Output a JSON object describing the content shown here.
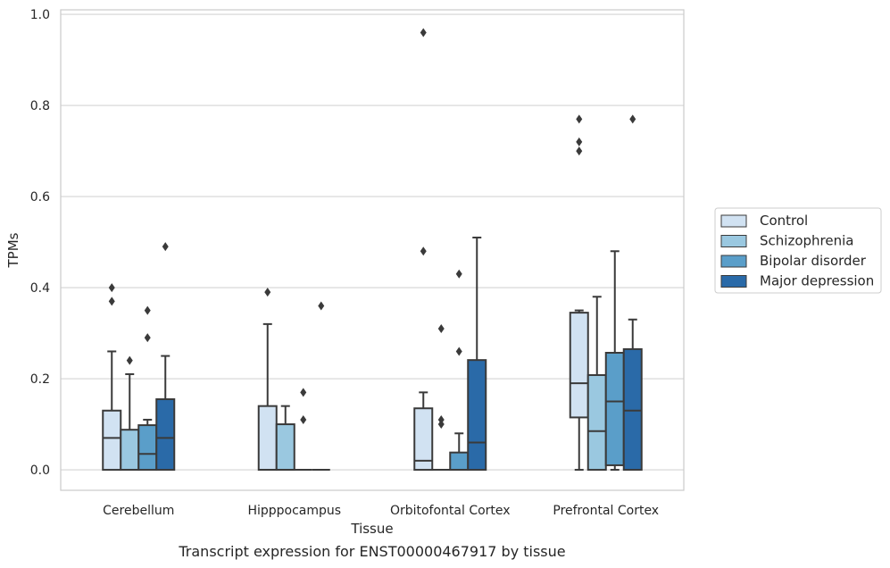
{
  "chart_data": {
    "type": "box",
    "caption": "Transcript expression for ENST00000467917 by tissue",
    "xlabel": "Tissue",
    "ylabel": "TPMs",
    "ylim": [
      -0.045,
      1.01
    ],
    "yticks": [
      "0.0",
      "0.2",
      "0.4",
      "0.6",
      "0.8",
      "1.0"
    ],
    "grid": "horizontal",
    "legend_position": "right",
    "categories": [
      "Cerebellum",
      "Hipppocampus",
      "Orbitofontal Cortex",
      "Prefrontal Cortex"
    ],
    "series": [
      {
        "name": "Control",
        "color": "#d1e2f2",
        "boxes": [
          {
            "q1": 0.0,
            "median": 0.07,
            "q3": 0.13,
            "whisker_low": 0.0,
            "whisker_high": 0.26,
            "outliers": [
              0.37,
              0.4
            ]
          },
          {
            "q1": 0.0,
            "median": 0.0,
            "q3": 0.14,
            "whisker_low": 0.0,
            "whisker_high": 0.32,
            "outliers": [
              0.39
            ]
          },
          {
            "q1": 0.0,
            "median": 0.02,
            "q3": 0.135,
            "whisker_low": 0.0,
            "whisker_high": 0.17,
            "outliers": [
              0.48,
              0.96
            ]
          },
          {
            "q1": 0.115,
            "median": 0.19,
            "q3": 0.345,
            "whisker_low": 0.0,
            "whisker_high": 0.35,
            "outliers": [
              0.7,
              0.72,
              0.77
            ]
          }
        ]
      },
      {
        "name": "Schizophrenia",
        "color": "#9ac8e0",
        "boxes": [
          {
            "q1": 0.0,
            "median": 0.0,
            "q3": 0.088,
            "whisker_low": 0.0,
            "whisker_high": 0.21,
            "outliers": [
              0.24
            ]
          },
          {
            "q1": 0.0,
            "median": 0.0,
            "q3": 0.1,
            "whisker_low": 0.0,
            "whisker_high": 0.14,
            "outliers": []
          },
          {
            "q1": 0.0,
            "median": 0.0,
            "q3": 0.0,
            "whisker_low": 0.0,
            "whisker_high": 0.0,
            "outliers": [
              0.1,
              0.11,
              0.31
            ]
          },
          {
            "q1": 0.0,
            "median": 0.085,
            "q3": 0.208,
            "whisker_low": 0.0,
            "whisker_high": 0.38,
            "outliers": []
          }
        ]
      },
      {
        "name": "Bipolar disorder",
        "color": "#5a9ec9",
        "boxes": [
          {
            "q1": 0.0,
            "median": 0.035,
            "q3": 0.098,
            "whisker_low": 0.0,
            "whisker_high": 0.11,
            "outliers": [
              0.29,
              0.35
            ]
          },
          {
            "q1": 0.0,
            "median": 0.0,
            "q3": 0.0,
            "whisker_low": 0.0,
            "whisker_high": 0.0,
            "outliers": [
              0.11,
              0.17
            ]
          },
          {
            "q1": 0.0,
            "median": 0.0,
            "q3": 0.038,
            "whisker_low": 0.0,
            "whisker_high": 0.08,
            "outliers": [
              0.26,
              0.43
            ]
          },
          {
            "q1": 0.01,
            "median": 0.15,
            "q3": 0.257,
            "whisker_low": 0.0,
            "whisker_high": 0.48,
            "outliers": []
          }
        ]
      },
      {
        "name": "Major depression",
        "color": "#2a6aa8",
        "boxes": [
          {
            "q1": 0.0,
            "median": 0.07,
            "q3": 0.155,
            "whisker_low": 0.0,
            "whisker_high": 0.25,
            "outliers": [
              0.49
            ]
          },
          {
            "q1": 0.0,
            "median": 0.0,
            "q3": 0.0,
            "whisker_low": 0.0,
            "whisker_high": 0.0,
            "outliers": [
              0.36
            ]
          },
          {
            "q1": 0.0,
            "median": 0.06,
            "q3": 0.241,
            "whisker_low": 0.0,
            "whisker_high": 0.51,
            "outliers": []
          },
          {
            "q1": 0.0,
            "median": 0.13,
            "q3": 0.265,
            "whisker_low": 0.0,
            "whisker_high": 0.33,
            "outliers": [
              0.77
            ]
          }
        ]
      }
    ]
  }
}
